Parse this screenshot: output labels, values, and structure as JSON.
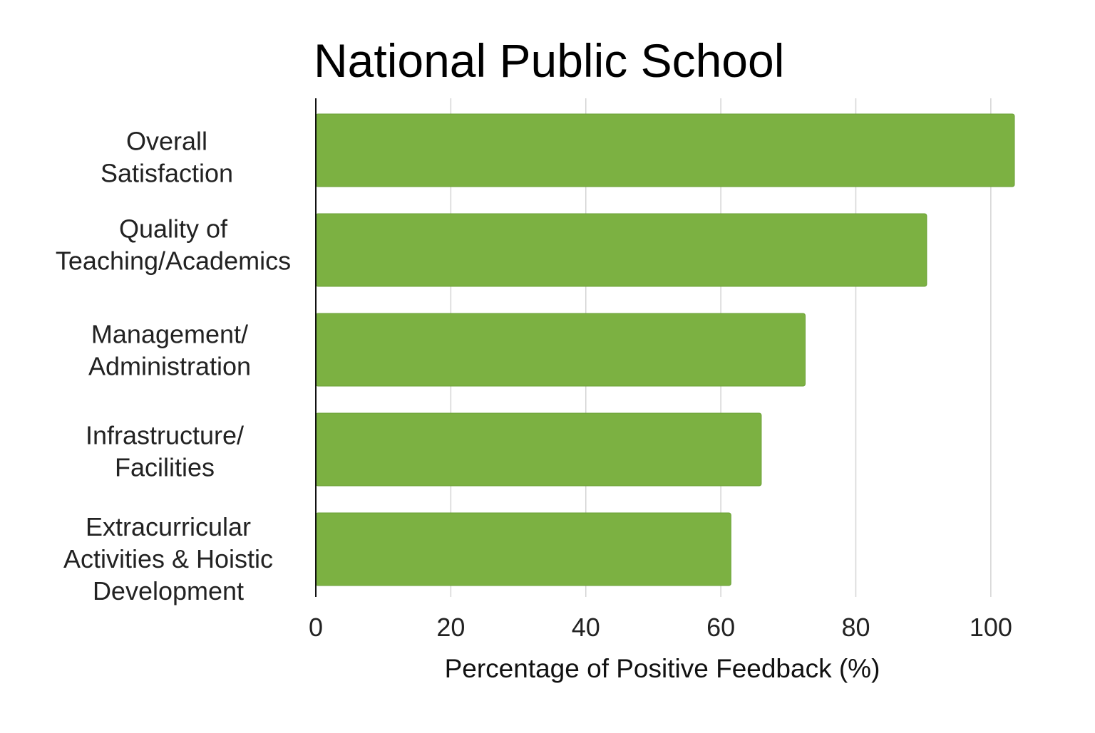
{
  "chart_data": {
    "type": "bar",
    "orientation": "horizontal",
    "title": "National Public School",
    "xlabel": "Percentage of Positive Feedback (%)",
    "ylabel": "",
    "categories": [
      "Overall Satisfaction",
      "Quality of Teaching/Academics",
      "Management/ Administration",
      "Infrastructure/ Facilities",
      "Extracurricular Activities & Hoistic Development"
    ],
    "category_lines": [
      [
        "Overall",
        "Satisfaction"
      ],
      [
        "Quality of",
        "Teaching/Academics"
      ],
      [
        "Management/",
        "Administration"
      ],
      [
        "Infrastructure/",
        "Facilities"
      ],
      [
        "Extracurricular",
        "Activities & Hoistic",
        "Development"
      ]
    ],
    "values": [
      103.5,
      90.5,
      72.5,
      66,
      61.5
    ],
    "xlim": [
      0,
      103.5
    ],
    "xticks": [
      0,
      20,
      40,
      60,
      80,
      100
    ],
    "grid": true,
    "legend": "none",
    "bar_color": "#7cb142",
    "bar_edge_color": "#6aa035"
  }
}
